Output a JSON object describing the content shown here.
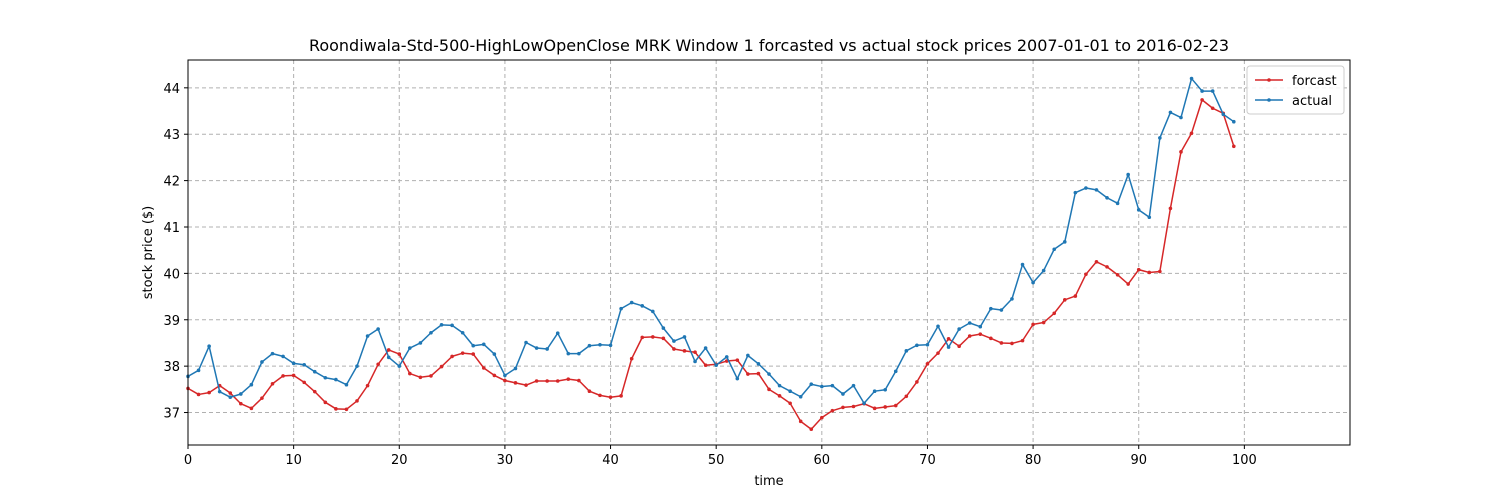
{
  "chart_data": {
    "type": "line",
    "title": "Roondiwala-Std-500-HighLowOpenClose MRK Window 1 forcasted vs actual stock prices 2007-01-01 to 2016-02-23",
    "xlabel": "time",
    "ylabel": "stock price ($)",
    "xlim": [
      0,
      110
    ],
    "ylim": [
      36.3,
      44.6
    ],
    "xticks": [
      0,
      10,
      20,
      30,
      40,
      50,
      60,
      70,
      80,
      90,
      100
    ],
    "yticks": [
      37,
      38,
      39,
      40,
      41,
      42,
      43,
      44
    ],
    "grid": true,
    "legend_position": "top-right",
    "x": [
      0,
      1,
      2,
      3,
      4,
      5,
      6,
      7,
      8,
      9,
      10,
      11,
      12,
      13,
      14,
      15,
      16,
      17,
      18,
      19,
      20,
      21,
      22,
      23,
      24,
      25,
      26,
      27,
      28,
      29,
      30,
      31,
      32,
      33,
      34,
      35,
      36,
      37,
      38,
      39,
      40,
      41,
      42,
      43,
      44,
      45,
      46,
      47,
      48,
      49,
      50,
      51,
      52,
      53,
      54,
      55,
      56,
      57,
      58,
      59,
      60,
      61,
      62,
      63,
      64,
      65,
      66,
      67,
      68,
      69,
      70,
      71,
      72,
      73,
      74,
      75,
      76,
      77,
      78,
      79,
      80,
      81,
      82,
      83,
      84,
      85,
      86,
      87,
      88,
      89,
      90,
      91,
      92,
      93,
      94,
      95,
      96,
      97,
      98,
      99
    ],
    "series": [
      {
        "name": "forcast",
        "color": "#d62728",
        "values": [
          37.52,
          37.39,
          37.43,
          37.58,
          37.42,
          37.19,
          37.09,
          37.31,
          37.62,
          37.79,
          37.8,
          37.65,
          37.45,
          37.22,
          37.08,
          37.07,
          37.25,
          37.58,
          38.04,
          38.35,
          38.26,
          37.84,
          37.76,
          37.79,
          37.99,
          38.21,
          38.28,
          38.26,
          37.96,
          37.8,
          37.69,
          37.64,
          37.59,
          37.68,
          37.68,
          37.68,
          37.72,
          37.69,
          37.46,
          37.37,
          37.33,
          37.36,
          38.16,
          38.62,
          38.63,
          38.6,
          38.37,
          38.33,
          38.3,
          38.02,
          38.04,
          38.11,
          38.13,
          37.83,
          37.84,
          37.5,
          37.36,
          37.2,
          36.81,
          36.64,
          36.89,
          37.04,
          37.11,
          37.13,
          37.19,
          37.09,
          37.12,
          37.15,
          37.35,
          37.66,
          38.05,
          38.28,
          38.59,
          38.43,
          38.65,
          38.69,
          38.6,
          38.5,
          38.49,
          38.55,
          38.9,
          38.94,
          39.14,
          39.43,
          39.51,
          39.98,
          40.25,
          40.14,
          39.97,
          39.77,
          40.08,
          40.02,
          40.04,
          41.4,
          42.62,
          43.02,
          43.74,
          43.56,
          43.45,
          42.74
        ]
      },
      {
        "name": "actual",
        "color": "#1f77b4",
        "values": [
          37.78,
          37.91,
          38.43,
          37.45,
          37.33,
          37.4,
          37.6,
          38.09,
          38.27,
          38.21,
          38.06,
          38.03,
          37.88,
          37.75,
          37.71,
          37.6,
          38.0,
          38.65,
          38.8,
          38.19,
          38.0,
          38.39,
          38.5,
          38.72,
          38.89,
          38.88,
          38.72,
          38.44,
          38.47,
          38.26,
          37.8,
          37.95,
          38.51,
          38.39,
          38.37,
          38.71,
          38.27,
          38.27,
          38.44,
          38.46,
          38.45,
          39.24,
          39.37,
          39.3,
          39.18,
          38.82,
          38.54,
          38.63,
          38.1,
          38.39,
          38.02,
          38.2,
          37.73,
          38.23,
          38.05,
          37.83,
          37.58,
          37.46,
          37.34,
          37.61,
          37.56,
          37.58,
          37.4,
          37.58,
          37.2,
          37.46,
          37.49,
          37.89,
          38.33,
          38.45,
          38.46,
          38.86,
          38.41,
          38.8,
          38.93,
          38.85,
          39.24,
          39.21,
          39.45,
          40.19,
          39.8,
          40.06,
          40.52,
          40.68,
          41.74,
          41.84,
          41.8,
          41.63,
          41.51,
          42.13,
          41.37,
          41.21,
          42.92,
          43.47,
          43.36,
          44.2,
          43.93,
          43.93,
          43.43,
          43.27
        ]
      }
    ]
  }
}
